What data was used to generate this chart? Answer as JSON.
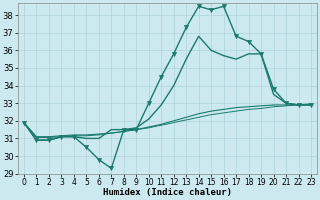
{
  "xlabel": "Humidex (Indice chaleur)",
  "xlim": [
    -0.5,
    23.5
  ],
  "ylim": [
    29,
    38.7
  ],
  "yticks": [
    29,
    30,
    31,
    32,
    33,
    34,
    35,
    36,
    37,
    38
  ],
  "xticks": [
    0,
    1,
    2,
    3,
    4,
    5,
    6,
    7,
    8,
    9,
    10,
    11,
    12,
    13,
    14,
    15,
    16,
    17,
    18,
    19,
    20,
    21,
    22,
    23
  ],
  "bg_color": "#cce9ef",
  "grid_color": "#aed4dc",
  "line_color": "#1a7a6e",
  "line1_x": [
    0,
    1,
    2,
    3,
    4,
    5,
    6,
    7,
    8,
    9,
    10,
    11,
    12,
    13,
    14,
    15,
    16,
    17,
    18,
    19,
    20,
    21,
    22,
    23
  ],
  "line1_y": [
    31.9,
    30.9,
    30.9,
    31.1,
    31.1,
    30.5,
    29.8,
    29.3,
    31.5,
    31.5,
    33.0,
    34.5,
    35.8,
    37.3,
    38.5,
    38.3,
    38.5,
    36.8,
    36.5,
    35.8,
    33.8,
    33.0,
    32.9,
    32.9
  ],
  "line2_x": [
    0,
    1,
    2,
    3,
    4,
    5,
    6,
    7,
    8,
    9,
    10,
    11,
    12,
    13,
    14,
    15,
    16,
    17,
    18,
    19,
    20,
    21,
    22,
    23
  ],
  "line2_y": [
    31.9,
    30.9,
    30.9,
    31.1,
    31.1,
    31.0,
    31.0,
    31.5,
    31.5,
    31.6,
    32.1,
    32.9,
    34.0,
    35.5,
    36.8,
    36.0,
    35.7,
    35.5,
    35.8,
    35.8,
    33.5,
    33.0,
    32.9,
    32.9
  ],
  "line3_x": [
    0,
    1,
    2,
    3,
    4,
    5,
    6,
    7,
    8,
    9,
    10,
    11,
    12,
    13,
    14,
    15,
    16,
    17,
    18,
    19,
    20,
    21,
    22,
    23
  ],
  "line3_y": [
    31.9,
    31.1,
    31.1,
    31.15,
    31.2,
    31.2,
    31.25,
    31.3,
    31.4,
    31.5,
    31.65,
    31.8,
    32.0,
    32.2,
    32.4,
    32.55,
    32.65,
    32.75,
    32.8,
    32.85,
    32.9,
    32.9,
    32.92,
    32.95
  ],
  "line4_x": [
    0,
    1,
    2,
    3,
    4,
    5,
    6,
    7,
    8,
    9,
    10,
    11,
    12,
    13,
    14,
    15,
    16,
    17,
    18,
    19,
    20,
    21,
    22,
    23
  ],
  "line4_y": [
    31.9,
    31.05,
    31.05,
    31.1,
    31.15,
    31.15,
    31.2,
    31.3,
    31.4,
    31.5,
    31.6,
    31.75,
    31.9,
    32.05,
    32.2,
    32.35,
    32.45,
    32.55,
    32.65,
    32.7,
    32.8,
    32.85,
    32.9,
    32.95
  ]
}
